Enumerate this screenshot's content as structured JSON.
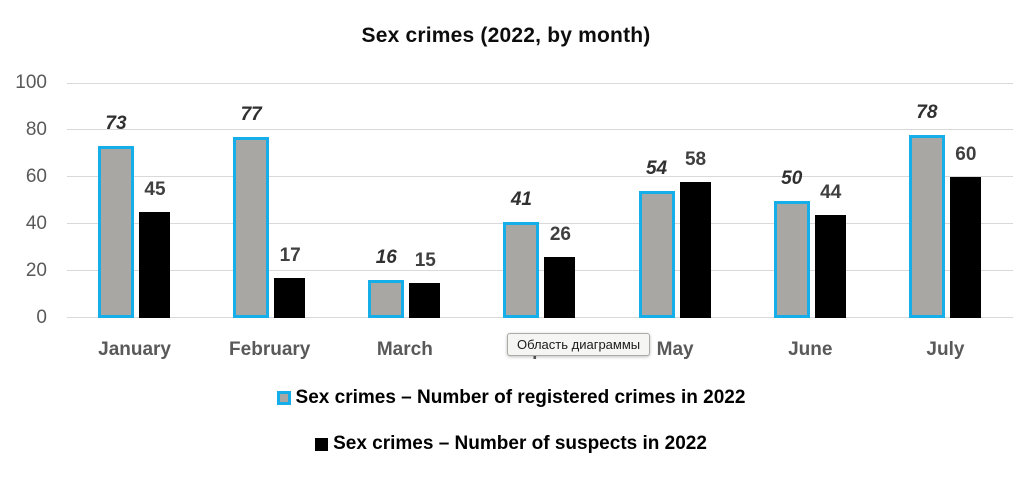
{
  "chart_data": {
    "type": "bar",
    "title": "Sex crimes (2022, by month)",
    "categories": [
      "January",
      "February",
      "March",
      "April",
      "May",
      "June",
      "July"
    ],
    "series": [
      {
        "name": "Sex crimes – Number of registered crimes in 2022",
        "values": [
          73,
          77,
          16,
          41,
          54,
          50,
          78
        ]
      },
      {
        "name": "Sex crimes – Number of suspects in 2022",
        "values": [
          45,
          17,
          15,
          26,
          58,
          44,
          60
        ]
      }
    ],
    "ylim": [
      0,
      100
    ],
    "yticks": [
      0,
      20,
      40,
      60,
      80,
      100
    ],
    "grid": "horizontal",
    "legend_position": "bottom",
    "colors": {
      "registered_fill": "#a9a7a4",
      "registered_border": "#16aee8",
      "suspects_fill": "#000000",
      "gridline": "#d9d9d9",
      "axis_text": "#595959",
      "value_label_registered": "#303030",
      "value_label_suspects": "#3f3f3f"
    }
  },
  "tooltip": {
    "text": "Область диаграммы"
  }
}
